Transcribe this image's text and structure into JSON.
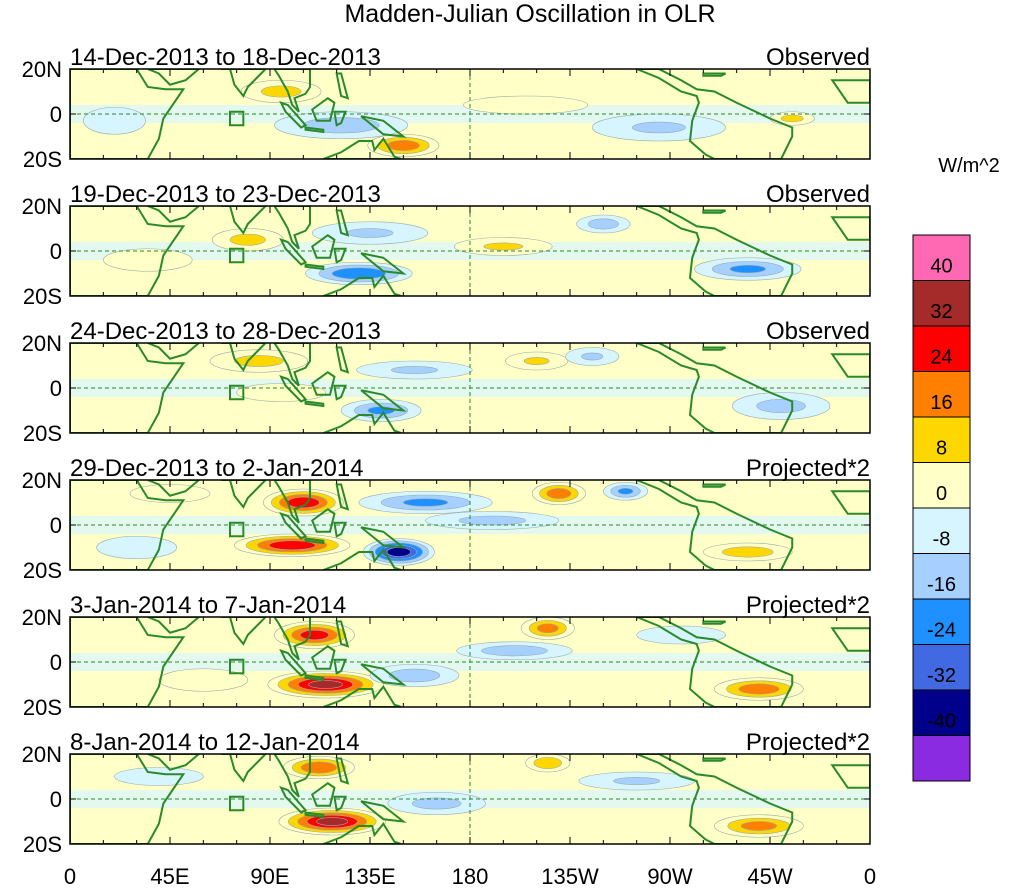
{
  "chart_data": {
    "type": "heatmap",
    "title": "Madden-Julian Oscillation in OLR",
    "units": "W/m^2",
    "y_ticks": [
      "20N",
      "0",
      "20S"
    ],
    "x_ticks": [
      "0",
      "45E",
      "90E",
      "135E",
      "180",
      "135W",
      "90W",
      "45W",
      "0"
    ],
    "x_range_deg": [
      0,
      360
    ],
    "y_range_deg": [
      -20,
      20
    ],
    "colorbar": {
      "levels": [
        "40",
        "32",
        "24",
        "16",
        "8",
        "0",
        "-8",
        "-16",
        "-24",
        "-32",
        "-40"
      ],
      "colors": [
        "#ff69b4",
        "#a52a2a",
        "#ff0000",
        "#ff7f00",
        "#ffd700",
        "#ffffc8",
        "#d7f5ff",
        "#a6d0ff",
        "#1e90ff",
        "#4169e1",
        "#00008b",
        "#8a2be2"
      ]
    },
    "panels": [
      {
        "period": "14-Dec-2013 to 18-Dec-2013",
        "kind": "Observed",
        "anomalies": [
          {
            "lon": 95,
            "lat": 10,
            "rlon": 18,
            "rlat": 5,
            "value": 12
          },
          {
            "lon": 122,
            "lat": -5,
            "rlon": 30,
            "rlat": 6,
            "value": -14
          },
          {
            "lon": 150,
            "lat": -14,
            "rlon": 16,
            "rlat": 5,
            "value": 22
          },
          {
            "lon": 205,
            "lat": 4,
            "rlon": 28,
            "rlat": 4,
            "value": 8
          },
          {
            "lon": 265,
            "lat": -6,
            "rlon": 30,
            "rlat": 6,
            "value": -10
          },
          {
            "lon": 325,
            "lat": -2,
            "rlon": 10,
            "rlat": 3,
            "value": 12
          },
          {
            "lon": 20,
            "lat": -3,
            "rlon": 14,
            "rlat": 6,
            "value": -8
          }
        ]
      },
      {
        "period": "19-Dec-2013 to 23-Dec-2013",
        "kind": "Observed",
        "anomalies": [
          {
            "lon": 80,
            "lat": 5,
            "rlon": 16,
            "rlat": 5,
            "value": 12
          },
          {
            "lon": 130,
            "lat": -10,
            "rlon": 24,
            "rlat": 5,
            "value": -24
          },
          {
            "lon": 135,
            "lat": 8,
            "rlon": 26,
            "rlat": 5,
            "value": -10
          },
          {
            "lon": 195,
            "lat": 2,
            "rlon": 22,
            "rlat": 4,
            "value": 10
          },
          {
            "lon": 240,
            "lat": 12,
            "rlon": 12,
            "rlat": 4,
            "value": -14
          },
          {
            "lon": 305,
            "lat": -8,
            "rlon": 24,
            "rlat": 5,
            "value": -18
          },
          {
            "lon": 35,
            "lat": -4,
            "rlon": 20,
            "rlat": 5,
            "value": 8
          }
        ]
      },
      {
        "period": "24-Dec-2013 to 28-Dec-2013",
        "kind": "Observed",
        "anomalies": [
          {
            "lon": 85,
            "lat": 12,
            "rlon": 22,
            "rlat": 5,
            "value": 12
          },
          {
            "lon": 95,
            "lat": -2,
            "rlon": 20,
            "rlat": 4,
            "value": 8
          },
          {
            "lon": 140,
            "lat": -10,
            "rlon": 18,
            "rlat": 5,
            "value": -18
          },
          {
            "lon": 155,
            "lat": 8,
            "rlon": 26,
            "rlat": 4,
            "value": -10
          },
          {
            "lon": 210,
            "lat": 12,
            "rlon": 14,
            "rlat": 4,
            "value": 10
          },
          {
            "lon": 235,
            "lat": 14,
            "rlon": 12,
            "rlat": 4,
            "value": -10
          },
          {
            "lon": 320,
            "lat": -8,
            "rlon": 22,
            "rlat": 6,
            "value": -12
          }
        ]
      },
      {
        "period": "29-Dec-2013 to 2-Jan-2014",
        "kind": "Projected*2",
        "anomalies": [
          {
            "lon": 105,
            "lat": 10,
            "rlon": 18,
            "rlat": 6,
            "value": 30
          },
          {
            "lon": 100,
            "lat": -9,
            "rlon": 26,
            "rlat": 5,
            "value": 30
          },
          {
            "lon": 148,
            "lat": -12,
            "rlon": 16,
            "rlat": 6,
            "value": -36
          },
          {
            "lon": 160,
            "lat": 10,
            "rlon": 30,
            "rlat": 5,
            "value": -18
          },
          {
            "lon": 190,
            "lat": 2,
            "rlon": 30,
            "rlat": 4,
            "value": -12
          },
          {
            "lon": 220,
            "lat": 14,
            "rlon": 12,
            "rlat": 5,
            "value": 22
          },
          {
            "lon": 250,
            "lat": 15,
            "rlon": 10,
            "rlat": 4,
            "value": -18
          },
          {
            "lon": 305,
            "lat": -12,
            "rlon": 20,
            "rlat": 4,
            "value": 14
          },
          {
            "lon": 45,
            "lat": 14,
            "rlon": 18,
            "rlat": 4,
            "value": 8
          },
          {
            "lon": 30,
            "lat": -10,
            "rlon": 18,
            "rlat": 5,
            "value": -8
          }
        ]
      },
      {
        "period": "3-Jan-2014 to 7-Jan-2014",
        "kind": "Projected*2",
        "anomalies": [
          {
            "lon": 110,
            "lat": 12,
            "rlon": 18,
            "rlat": 6,
            "value": 28
          },
          {
            "lon": 115,
            "lat": -10,
            "rlon": 26,
            "rlat": 6,
            "value": 34
          },
          {
            "lon": 155,
            "lat": -6,
            "rlon": 20,
            "rlat": 5,
            "value": -14
          },
          {
            "lon": 200,
            "lat": 5,
            "rlon": 26,
            "rlat": 4,
            "value": -14
          },
          {
            "lon": 215,
            "lat": 15,
            "rlon": 12,
            "rlat": 5,
            "value": 20
          },
          {
            "lon": 310,
            "lat": -12,
            "rlon": 20,
            "rlat": 5,
            "value": 22
          },
          {
            "lon": 60,
            "lat": -8,
            "rlon": 20,
            "rlat": 5,
            "value": 8
          },
          {
            "lon": 275,
            "lat": 12,
            "rlon": 20,
            "rlat": 4,
            "value": -8
          }
        ]
      },
      {
        "period": "8-Jan-2014 to 12-Jan-2014",
        "kind": "Projected*2",
        "anomalies": [
          {
            "lon": 112,
            "lat": 14,
            "rlon": 16,
            "rlat": 5,
            "value": 24
          },
          {
            "lon": 118,
            "lat": -10,
            "rlon": 24,
            "rlat": 6,
            "value": 34
          },
          {
            "lon": 165,
            "lat": -2,
            "rlon": 22,
            "rlat": 5,
            "value": -12
          },
          {
            "lon": 215,
            "lat": 16,
            "rlon": 10,
            "rlat": 4,
            "value": 16
          },
          {
            "lon": 310,
            "lat": -12,
            "rlon": 20,
            "rlat": 5,
            "value": 20
          },
          {
            "lon": 40,
            "lat": 10,
            "rlon": 20,
            "rlat": 4,
            "value": -8
          },
          {
            "lon": 255,
            "lat": 8,
            "rlon": 26,
            "rlat": 4,
            "value": -10
          }
        ]
      }
    ]
  }
}
